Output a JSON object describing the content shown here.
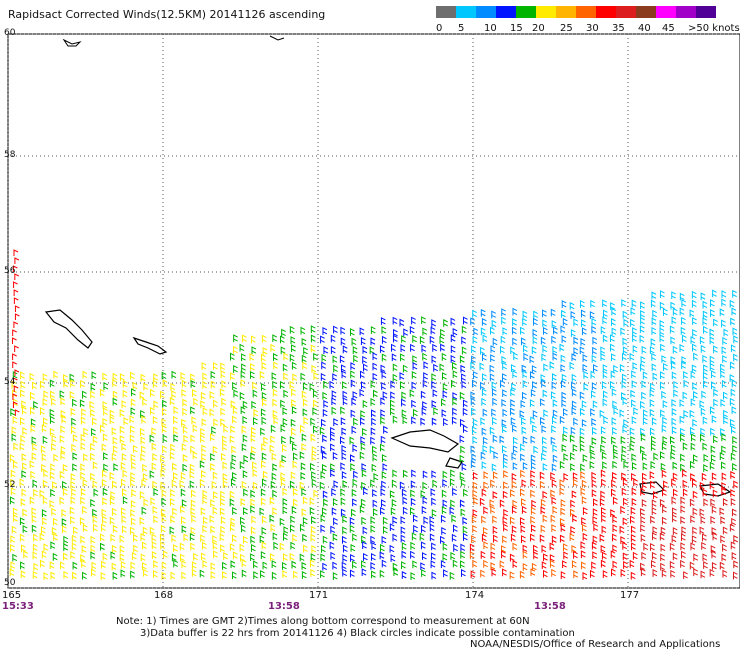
{
  "title": "Rapidsact Corrected Winds(12.5KM) 20141126 ascending",
  "legend": {
    "colors": [
      "#6e6e6e",
      "#00c8ff",
      "#008cff",
      "#0014ff",
      "#00b400",
      "#ffeb00",
      "#ffb400",
      "#ff6400",
      "#ff0000",
      "#dc1e1e",
      "#8c3c1e",
      "#ff00ff",
      "#a000c8",
      "#500096"
    ],
    "labels": [
      "0",
      "5",
      "10",
      "15",
      "20",
      "25",
      "30",
      "35",
      "40",
      "45",
      ">50 knots"
    ]
  },
  "map": {
    "lat_labels": [
      "60",
      "58",
      "56",
      "54",
      "52",
      "50"
    ],
    "lon_labels": [
      "165",
      "168",
      "171",
      "174",
      "177"
    ],
    "time_labels": [
      "15:33",
      "13:58",
      "13:58"
    ]
  },
  "notes": {
    "line1": "Note: 1) Times are GMT 2)Times along bottom correspond to measurement at 60N",
    "line2": "3)Data buffer is 22 hrs from 20141126 4) Black circles indicate possible contamination",
    "line3": "NOAA/NESDIS/Office of Research and Applications"
  }
}
